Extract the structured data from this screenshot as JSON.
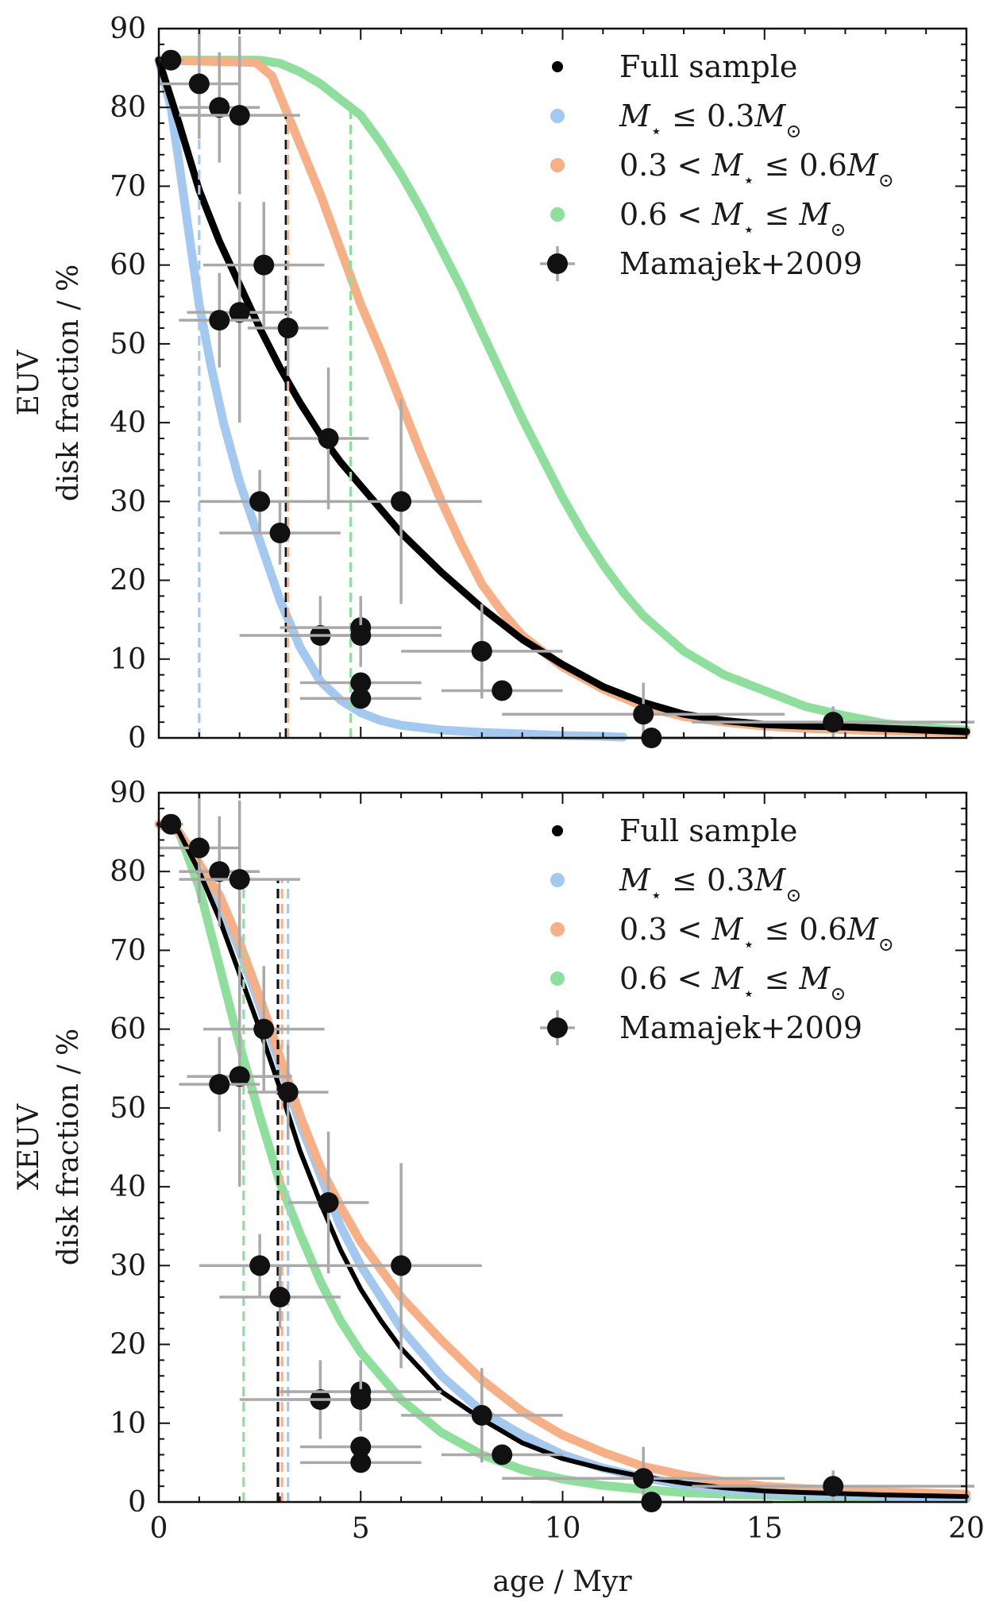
{
  "chart_data": {
    "type": "line",
    "x_axis": {
      "label": "age / Myr",
      "range": [
        0,
        20
      ],
      "ticks": [
        "0",
        "5",
        "10",
        "15",
        "20"
      ]
    },
    "shared_y": {
      "range": [
        0,
        90
      ],
      "ticks": [
        "0",
        "10",
        "20",
        "30",
        "40",
        "50",
        "60",
        "70",
        "80",
        "90"
      ],
      "tick_values": [
        0,
        10,
        20,
        30,
        40,
        50,
        60,
        70,
        80,
        90
      ]
    },
    "colors": {
      "full": "#000000",
      "low": "#a3c9f0",
      "mid": "#f7b085",
      "high": "#8fdf9c",
      "data": "#111111",
      "errorbar": "#a9a9a9"
    },
    "legend": {
      "full": "Full sample",
      "low": {
        "m": "M",
        "rel": " ≤ 0.3",
        "msun": "M"
      },
      "mid": {
        "pre": "0.3 < ",
        "m": "M",
        "rel": " ≤ 0.6",
        "msun": "M"
      },
      "high": {
        "pre": "0.6 < ",
        "m": "M",
        "rel": " ≤ ",
        "msun": "M"
      },
      "data": "Mamajek+2009"
    },
    "observations": [
      {
        "x": 0.3,
        "y": 86,
        "xe": 0.3,
        "ye": 0
      },
      {
        "x": 1.0,
        "y": 83,
        "xe": 1.0,
        "ye": 7
      },
      {
        "x": 1.5,
        "y": 80,
        "xe": 1.0,
        "ye": 7
      },
      {
        "x": 2.0,
        "y": 79,
        "xe": 1.5,
        "ye": 10
      },
      {
        "x": 2.6,
        "y": 60,
        "xe": 1.5,
        "ye": 8
      },
      {
        "x": 2.0,
        "y": 54,
        "xe": 1.3,
        "ye": 14
      },
      {
        "x": 1.5,
        "y": 53,
        "xe": 1.0,
        "ye": 6
      },
      {
        "x": 3.2,
        "y": 52,
        "xe": 1.0,
        "ye": 6
      },
      {
        "x": 4.2,
        "y": 38,
        "xe": 1.0,
        "ye": 9
      },
      {
        "x": 2.5,
        "y": 30,
        "xe": 1.5,
        "ye": 4
      },
      {
        "x": 6.0,
        "y": 30,
        "xe": 2.0,
        "ye": 13
      },
      {
        "x": 3.0,
        "y": 26,
        "xe": 1.5,
        "ye": 4
      },
      {
        "x": 4.0,
        "y": 13,
        "xe": 2.0,
        "ye": 5
      },
      {
        "x": 5.0,
        "y": 14,
        "xe": 2.0,
        "ye": 4
      },
      {
        "x": 5.0,
        "y": 13,
        "xe": 2.0,
        "ye": 4
      },
      {
        "x": 8.0,
        "y": 11,
        "xe": 2.0,
        "ye": 6
      },
      {
        "x": 5.0,
        "y": 7,
        "xe": 1.5,
        "ye": 1
      },
      {
        "x": 5.0,
        "y": 5,
        "xe": 1.5,
        "ye": 1
      },
      {
        "x": 8.5,
        "y": 6,
        "xe": 1.5,
        "ye": 1
      },
      {
        "x": 12.0,
        "y": 3,
        "xe": 3.5,
        "ye": 4
      },
      {
        "x": 12.2,
        "y": 0,
        "xe": 3.0,
        "ye": 0
      },
      {
        "x": 16.7,
        "y": 2,
        "xe": 3.5,
        "ye": 2
      }
    ],
    "panels": [
      {
        "ylabel_line1": "EUV",
        "ylabel_line2": "disk fraction / %",
        "series": [
          {
            "name": "Full sample",
            "key": "full",
            "values": [
              [
                0,
                86
              ],
              [
                0.5,
                78
              ],
              [
                1,
                69.5
              ],
              [
                1.5,
                63
              ],
              [
                2,
                57.5
              ],
              [
                2.5,
                52
              ],
              [
                3,
                47
              ],
              [
                3.5,
                42.5
              ],
              [
                4,
                38.5
              ],
              [
                4.5,
                35
              ],
              [
                5,
                32
              ],
              [
                6,
                26
              ],
              [
                7,
                21
              ],
              [
                8,
                16.5
              ],
              [
                9,
                12.5
              ],
              [
                10,
                9.3
              ],
              [
                11,
                6.5
              ],
              [
                12,
                4.5
              ],
              [
                13,
                3
              ],
              [
                14,
                2.2
              ],
              [
                15,
                1.7
              ],
              [
                16,
                1.5
              ],
              [
                17,
                1.4
              ],
              [
                18,
                1.2
              ],
              [
                19,
                1.0
              ],
              [
                20,
                0.8
              ]
            ]
          },
          {
            "name": "M ≤ 0.3 Msun",
            "key": "low",
            "values": [
              [
                0,
                86
              ],
              [
                0.3,
                80
              ],
              [
                0.5,
                73
              ],
              [
                0.8,
                62
              ],
              [
                1,
                55
              ],
              [
                1.3,
                47
              ],
              [
                1.6,
                40
              ],
              [
                2,
                32.5
              ],
              [
                2.5,
                25
              ],
              [
                3,
                17.5
              ],
              [
                3.5,
                11.5
              ],
              [
                4,
                7.2
              ],
              [
                4.5,
                4.8
              ],
              [
                5,
                3.2
              ],
              [
                5.5,
                2.2
              ],
              [
                6,
                1.6
              ],
              [
                7,
                1.0
              ],
              [
                8,
                0.7
              ],
              [
                9,
                0.5
              ],
              [
                10,
                0.3
              ],
              [
                11,
                0.2
              ],
              [
                11.5,
                0.1
              ]
            ]
          },
          {
            "name": "0.3 < M ≤ 0.6 Msun",
            "key": "mid",
            "values": [
              [
                0,
                86
              ],
              [
                2.4,
                85.7
              ],
              [
                2.8,
                84
              ],
              [
                3.2,
                79
              ],
              [
                3.6,
                74
              ],
              [
                4,
                69
              ],
              [
                4.5,
                62
              ],
              [
                5,
                55
              ],
              [
                5.5,
                49
              ],
              [
                6,
                42.5
              ],
              [
                6.5,
                36
              ],
              [
                7,
                30
              ],
              [
                7.5,
                24.5
              ],
              [
                8,
                19.5
              ],
              [
                8.5,
                16
              ],
              [
                9,
                13
              ],
              [
                10,
                9
              ],
              [
                11,
                6.2
              ],
              [
                12,
                4
              ],
              [
                13,
                2.7
              ],
              [
                14,
                2
              ],
              [
                15,
                1.5
              ],
              [
                16,
                1.2
              ],
              [
                18,
                0.9
              ],
              [
                20,
                0.7
              ]
            ]
          },
          {
            "name": "0.6 < M ≤ Msun",
            "key": "high",
            "values": [
              [
                0,
                86
              ],
              [
                2.5,
                86
              ],
              [
                3,
                85.6
              ],
              [
                3.5,
                84.5
              ],
              [
                4,
                83
              ],
              [
                4.5,
                81
              ],
              [
                5,
                79
              ],
              [
                5.5,
                75.5
              ],
              [
                6,
                71.5
              ],
              [
                6.5,
                67
              ],
              [
                7,
                62
              ],
              [
                7.5,
                57
              ],
              [
                8,
                51.5
              ],
              [
                8.5,
                46
              ],
              [
                9,
                40.5
              ],
              [
                9.5,
                35.5
              ],
              [
                10,
                30.5
              ],
              [
                10.5,
                26
              ],
              [
                11,
                22
              ],
              [
                11.5,
                18.5
              ],
              [
                12,
                15.5
              ],
              [
                13,
                11
              ],
              [
                14,
                8
              ],
              [
                15,
                6
              ],
              [
                16,
                4
              ],
              [
                17,
                2.8
              ],
              [
                18,
                1.8
              ],
              [
                19,
                1.3
              ],
              [
                20,
                1.0
              ]
            ]
          }
        ],
        "medians": [
          {
            "key": "low",
            "x": 1.0,
            "y": 86
          },
          {
            "key": "full",
            "x": 3.15,
            "y": 79
          },
          {
            "key": "mid",
            "x": 3.2,
            "y": 79
          },
          {
            "key": "high",
            "x": 4.75,
            "y": 80
          }
        ]
      },
      {
        "ylabel_line1": "XEUV",
        "ylabel_line2": "disk fraction / %",
        "series": [
          {
            "name": "Full sample",
            "key": "full",
            "values": [
              [
                0,
                86
              ],
              [
                0.5,
                85
              ],
              [
                1,
                80
              ],
              [
                1.5,
                74
              ],
              [
                2,
                67
              ],
              [
                2.5,
                60
              ],
              [
                3,
                52.5
              ],
              [
                3.5,
                44.5
              ],
              [
                4,
                38
              ],
              [
                4.5,
                32
              ],
              [
                5,
                27
              ],
              [
                5.5,
                23
              ],
              [
                6,
                19.5
              ],
              [
                7,
                14
              ],
              [
                8,
                10.5
              ],
              [
                9,
                7.5
              ],
              [
                10,
                5.5
              ],
              [
                11,
                4.2
              ],
              [
                12,
                3.2
              ],
              [
                13,
                2.4
              ],
              [
                14,
                1.8
              ],
              [
                15,
                1.4
              ],
              [
                16,
                1.2
              ],
              [
                18,
                0.9
              ],
              [
                20,
                0.7
              ]
            ]
          },
          {
            "name": "M ≤ 0.3 Msun",
            "key": "low",
            "values": [
              [
                0,
                86
              ],
              [
                0.5,
                85
              ],
              [
                1,
                81
              ],
              [
                1.5,
                76
              ],
              [
                2,
                70
              ],
              [
                2.5,
                63
              ],
              [
                3,
                55.5
              ],
              [
                3.5,
                48
              ],
              [
                4,
                41.5
              ],
              [
                4.5,
                35
              ],
              [
                5,
                30
              ],
              [
                5.5,
                26
              ],
              [
                6,
                22
              ],
              [
                7,
                16
              ],
              [
                8,
                11.5
              ],
              [
                9,
                8.5
              ],
              [
                10,
                6
              ],
              [
                11,
                4.3
              ],
              [
                12,
                3.1
              ],
              [
                13,
                2.2
              ],
              [
                14,
                1.6
              ],
              [
                15,
                1.2
              ],
              [
                16,
                1.0
              ],
              [
                18,
                0.8
              ],
              [
                20,
                0.6
              ]
            ]
          },
          {
            "name": "0.3 < M ≤ 0.6 Msun",
            "key": "mid",
            "values": [
              [
                0,
                86
              ],
              [
                0.5,
                85
              ],
              [
                1,
                81
              ],
              [
                1.5,
                77
              ],
              [
                2,
                71
              ],
              [
                2.5,
                64
              ],
              [
                3,
                56.5
              ],
              [
                3.5,
                49
              ],
              [
                4,
                42.5
              ],
              [
                4.5,
                37.5
              ],
              [
                5,
                33
              ],
              [
                5.5,
                29.5
              ],
              [
                6,
                26
              ],
              [
                7,
                20.5
              ],
              [
                8,
                15.5
              ],
              [
                9,
                11.5
              ],
              [
                10,
                8.5
              ],
              [
                11,
                6.3
              ],
              [
                12,
                4.5
              ],
              [
                13,
                3.4
              ],
              [
                14,
                2.6
              ],
              [
                15,
                2
              ],
              [
                16,
                1.7
              ],
              [
                18,
                1.3
              ],
              [
                20,
                1.0
              ]
            ]
          },
          {
            "name": "0.6 < M ≤ Msun",
            "key": "high",
            "values": [
              [
                0,
                86
              ],
              [
                0.5,
                85
              ],
              [
                1,
                78
              ],
              [
                1.5,
                68
              ],
              [
                2,
                58
              ],
              [
                2.5,
                49
              ],
              [
                3,
                40.5
              ],
              [
                3.5,
                34
              ],
              [
                4,
                28
              ],
              [
                4.5,
                23
              ],
              [
                5,
                19
              ],
              [
                5.5,
                16
              ],
              [
                6,
                13
              ],
              [
                7,
                8.8
              ],
              [
                8,
                6
              ],
              [
                9,
                4.1
              ],
              [
                10,
                2.9
              ],
              [
                11,
                2.1
              ],
              [
                12,
                1.6
              ],
              [
                13,
                1.2
              ],
              [
                14,
                1
              ],
              [
                16,
                0.7
              ],
              [
                18,
                0.5
              ],
              [
                20,
                0.4
              ]
            ]
          }
        ],
        "medians": [
          {
            "key": "high",
            "x": 2.1,
            "y": 79
          },
          {
            "key": "full",
            "x": 2.95,
            "y": 79
          },
          {
            "key": "mid",
            "x": 3.05,
            "y": 79
          },
          {
            "key": "low",
            "x": 3.2,
            "y": 79
          }
        ]
      }
    ]
  }
}
